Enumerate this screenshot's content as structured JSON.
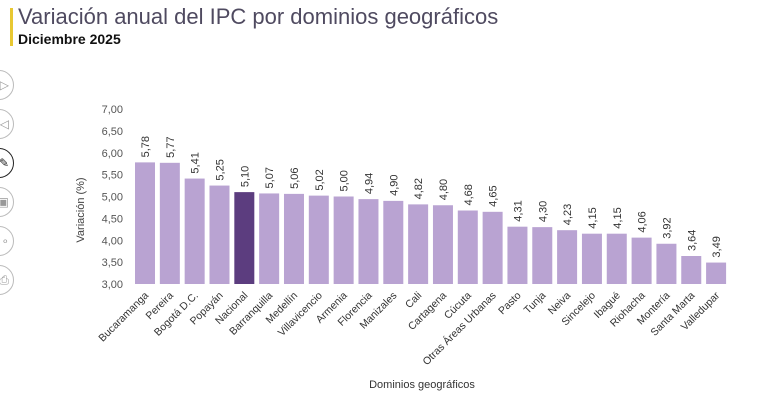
{
  "header": {
    "title": "Variación anual del IPC por dominios geográficos",
    "subtitle": "Diciembre 2025"
  },
  "sidebar_icons": [
    "play-icon",
    "back-icon",
    "draw-icon",
    "image-icon",
    "more-icon",
    "print-icon"
  ],
  "chart_data": {
    "type": "bar",
    "xlabel": "Dominios geográficos",
    "ylabel": "Variación (%)",
    "ylim": [
      3.0,
      7.0
    ],
    "yticks": [
      "7,00",
      "6,50",
      "6,00",
      "5,50",
      "5,00",
      "4,50",
      "4,00",
      "3,50",
      "3,00"
    ],
    "grid": false,
    "categories": [
      "Bucaramanga",
      "Pereira",
      "Bogotá D.C.",
      "Popayán",
      "Nacional",
      "Barranquilla",
      "Medellín",
      "Villavicencio",
      "Armenia",
      "Florencia",
      "Manizales",
      "Cali",
      "Cartagena",
      "Cúcuta",
      "Otras Áreas Urbanas",
      "Pasto",
      "Tunja",
      "Neiva",
      "Sincelejo",
      "Ibagué",
      "Riohacha",
      "Montería",
      "Santa Marta",
      "Valledupar"
    ],
    "values": [
      5.78,
      5.77,
      5.41,
      5.25,
      5.1,
      5.07,
      5.06,
      5.02,
      5.0,
      4.94,
      4.9,
      4.82,
      4.8,
      4.68,
      4.65,
      4.31,
      4.3,
      4.23,
      4.15,
      4.15,
      4.06,
      3.92,
      3.64,
      3.49
    ],
    "labels": [
      "5,78",
      "5,77",
      "5,41",
      "5,25",
      "5,10",
      "5,07",
      "5,06",
      "5,02",
      "5,00",
      "4,94",
      "4,90",
      "4,82",
      "4,80",
      "4,68",
      "4,65",
      "4,31",
      "4,30",
      "4,23",
      "4,15",
      "4,15",
      "4,06",
      "3,92",
      "3,64",
      "3,49"
    ],
    "highlight": "Nacional",
    "colors": {
      "bar": "#b9a3d2",
      "highlight": "#5c3d7f"
    }
  }
}
